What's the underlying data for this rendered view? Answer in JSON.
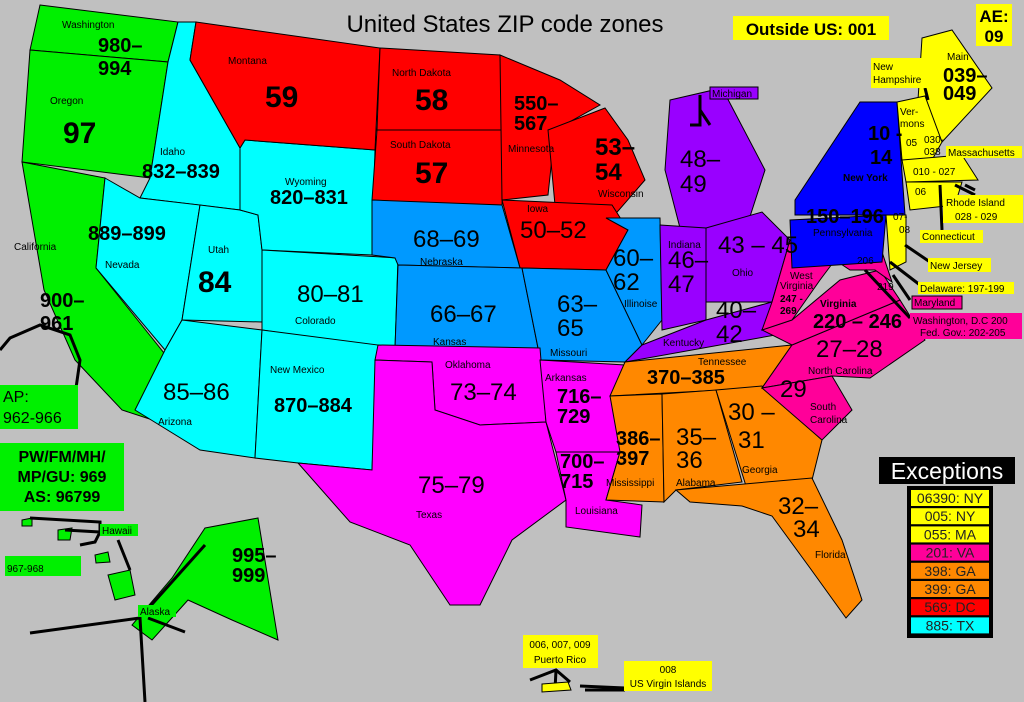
{
  "title": "United States ZIP code zones",
  "outside_us": "Outside US: 001",
  "ae": {
    "line1": "AE:",
    "line2": "09"
  },
  "colors": {
    "background": "#c0c0c0",
    "green": "#00f000",
    "cyan": "#00ffff",
    "red": "#ff0000",
    "sky": "#0099ff",
    "purple": "#9900ff",
    "magenta": "#ff00ff",
    "orange": "#ff8800",
    "pink": "#ff0099",
    "blue": "#0000ff",
    "yellow": "#ffff00"
  },
  "states": {
    "washington": {
      "name": "Washington",
      "zip1": "980–",
      "zip2": "994"
    },
    "oregon": {
      "name": "Oregon",
      "zip": "97"
    },
    "california": {
      "name": "California",
      "zip1": "900–",
      "zip2": "961"
    },
    "idaho": {
      "name": "Idaho",
      "zip": "832–839"
    },
    "nevada": {
      "name": "Nevada",
      "zip": "889–899"
    },
    "utah": {
      "name": "Utah",
      "zip": "84"
    },
    "wyoming": {
      "name": "Wyoming",
      "zip": "820–831"
    },
    "colorado": {
      "name": "Colorado",
      "zip": "80–81"
    },
    "arizona": {
      "name": "Arizona",
      "zip": "85–86"
    },
    "new_mexico": {
      "name": "New Mexico",
      "zip": "870–884"
    },
    "montana": {
      "name": "Montana",
      "zip": "59"
    },
    "north_dakota": {
      "name": "North Dakota",
      "zip": "58"
    },
    "south_dakota": {
      "name": "South Dakota",
      "zip": "57"
    },
    "minnesota": {
      "name": "Minnesota",
      "zip1": "550–",
      "zip2": "567"
    },
    "wisconsin": {
      "name": "Wisconsin",
      "zip1": "53–",
      "zip2": "54"
    },
    "iowa": {
      "name": "Iowa",
      "zip": "50–52"
    },
    "nebraska": {
      "name": "Nebraska",
      "zip": "68–69"
    },
    "kansas": {
      "name": "Kansas",
      "zip": "66–67"
    },
    "missouri": {
      "name": "Missouri",
      "zip1": "63–",
      "zip2": "65"
    },
    "illinois": {
      "name": "Illinoise",
      "zip1": "60–",
      "zip2": "62"
    },
    "michigan": {
      "name": "Michigan",
      "zip1": "48–",
      "zip2": "49"
    },
    "indiana": {
      "name": "Indiana",
      "zip1": "46–",
      "zip2": "47"
    },
    "ohio": {
      "name": "Ohio",
      "zip": "43 – 45"
    },
    "kentucky": {
      "name": "Kentucky",
      "zip1": "40–",
      "zip2": "42"
    },
    "oklahoma": {
      "name": "Oklahoma",
      "zip": "73–74"
    },
    "texas": {
      "name": "Texas",
      "zip": "75–79"
    },
    "arkansas": {
      "name": "Arkansas",
      "zip1": "716–",
      "zip2": "729"
    },
    "louisiana": {
      "name": "Louisiana",
      "zip1": "700–",
      "zip2": "715"
    },
    "tennessee": {
      "name": "Tennessee",
      "zip": "370–385"
    },
    "mississippi": {
      "name": "Mississippi",
      "zip1": "386–",
      "zip2": "397"
    },
    "alabama": {
      "name": "Alabama",
      "zip1": "35–",
      "zip2": "36"
    },
    "georgia": {
      "name": "Georgia",
      "zip1": "30 –",
      "zip2": "31"
    },
    "florida": {
      "name": "Florida",
      "zip1": "32–",
      "zip2": "34"
    },
    "south_carolina": {
      "name1": "South",
      "name2": "Carolina",
      "zip": "29"
    },
    "north_carolina": {
      "name": "North Carolina",
      "zip": "27–28"
    },
    "virginia": {
      "name": "Virginia",
      "zip": "220 – 246"
    },
    "west_virginia": {
      "name1": "West",
      "name2": "Virginia",
      "zip1": "247 -",
      "zip2": "269"
    },
    "maryland": {
      "name": "Maryland",
      "zip1": "206",
      "zip2": "219"
    },
    "dc": {
      "name": "Washington, D.C  200",
      "fed": "Fed. Gov.:   202-205"
    },
    "delaware": {
      "name": "Delaware: 197-199"
    },
    "pennsylvania": {
      "name": "Pennsylvania",
      "zip": "150–196"
    },
    "new_york": {
      "name": "New York",
      "zip1": "10  -",
      "zip2": "14"
    },
    "new_jersey": {
      "name": "New Jersey",
      "zip1": "07-",
      "zip2": "08"
    },
    "maine": {
      "name": "Main",
      "zip1": "039–",
      "zip2": "049"
    },
    "new_hampshire": {
      "name1": "New",
      "name2": "Hampshire",
      "zip1": "030-",
      "zip2": "038"
    },
    "vermont": {
      "name1": "Ver-",
      "name2": "mons",
      "zip": "05"
    },
    "massachusetts": {
      "name": "Massachusetts",
      "zip": "010 - 027"
    },
    "connecticut": {
      "name": "Connecticut",
      "zip": "06"
    },
    "rhode_island": {
      "name": "Rhode Island",
      "zip": "028 - 029"
    },
    "alaska": {
      "name": "Alaska",
      "zip1": "995–",
      "zip2": "999"
    },
    "hawaii": {
      "name": "Hawaii",
      "zip": "967-968"
    }
  },
  "military": {
    "ap1": "AP:",
    "ap2": "962-966"
  },
  "pacific": {
    "line1": "PW/FM/MH/",
    "line2": "MP/GU: 969",
    "line3": "AS: 96799"
  },
  "territories": {
    "puerto_rico": {
      "zip": "006, 007, 009",
      "name": "Puerto Rico"
    },
    "virgin_islands": {
      "zip": "008",
      "name": "US Virgin Islands"
    }
  },
  "exceptions": {
    "title": "Exceptions",
    "items": [
      {
        "text": "06390: NY",
        "color": "#ffff00"
      },
      {
        "text": "005: NY",
        "color": "#ffff00"
      },
      {
        "text": "055: MA",
        "color": "#ffff00"
      },
      {
        "text": "201: VA",
        "color": "#ff0099"
      },
      {
        "text": "398: GA",
        "color": "#ff8800"
      },
      {
        "text": "399: GA",
        "color": "#ff8800"
      },
      {
        "text": "569: DC",
        "color": "#ff0000"
      },
      {
        "text": "885: TX",
        "color": "#00ffff"
      }
    ]
  }
}
